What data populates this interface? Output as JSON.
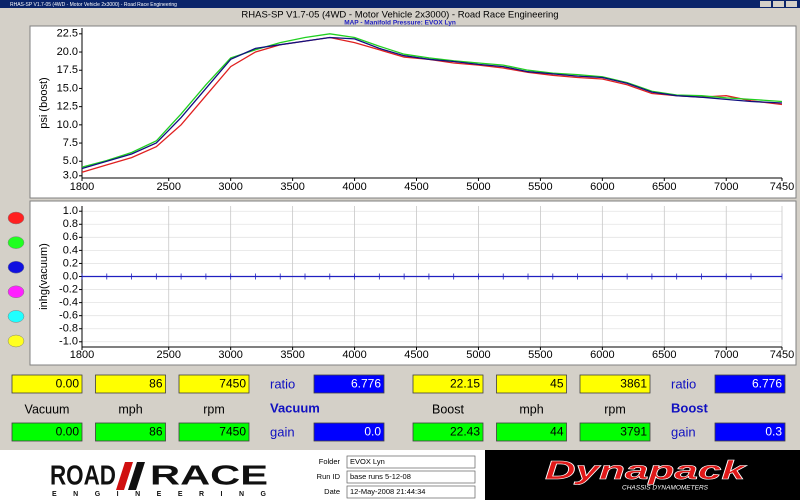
{
  "window_title": "RHAS-SP V1.7-05  (4WD - Motor Vehicle 2x3000) - Road Race Engineering",
  "chart_data": [
    {
      "type": "line",
      "title": "RHAS-SP V1.7-05  (4WD - Motor Vehicle 2x3000) - Road Race Engineering",
      "subtitle": "MAP - Manifold Pressure: EVOX Lyn",
      "ylabel": "psi (boost)",
      "x": [
        1800,
        2000,
        2200,
        2400,
        2600,
        2800,
        3000,
        3200,
        3400,
        3600,
        3800,
        4000,
        4200,
        4400,
        4600,
        4800,
        5000,
        5200,
        5400,
        5600,
        5800,
        6000,
        6200,
        6400,
        6600,
        6800,
        7000,
        7200,
        7450
      ],
      "series": [
        {
          "color": "#e02020",
          "values": [
            3.5,
            4.5,
            5.5,
            7.0,
            10.0,
            14.0,
            18.0,
            20.0,
            21.0,
            21.5,
            22.0,
            21.3,
            20.3,
            19.3,
            19.0,
            18.5,
            18.2,
            17.8,
            17.2,
            16.8,
            16.5,
            16.3,
            15.5,
            14.3,
            14.0,
            13.8,
            14.0,
            13.3,
            12.8
          ]
        },
        {
          "color": "#20d020",
          "values": [
            4.2,
            5.1,
            6.2,
            7.8,
            11.5,
            15.5,
            19.2,
            20.3,
            21.3,
            22.0,
            22.5,
            22.0,
            20.8,
            19.7,
            19.2,
            18.8,
            18.5,
            18.2,
            17.5,
            17.1,
            16.9,
            16.6,
            15.8,
            14.6,
            14.1,
            14.0,
            13.7,
            13.5,
            13.2
          ]
        },
        {
          "color": "#101080",
          "values": [
            4.0,
            5.0,
            6.0,
            7.5,
            11.0,
            15.0,
            19.0,
            20.5,
            21.0,
            21.5,
            22.0,
            21.8,
            20.5,
            19.5,
            19.0,
            18.7,
            18.3,
            18.0,
            17.3,
            17.0,
            16.7,
            16.5,
            15.7,
            14.5,
            14.0,
            13.8,
            13.5,
            13.2,
            13.0
          ]
        }
      ],
      "xlim": [
        1800,
        7450
      ],
      "ylim": [
        2.7,
        23.3
      ],
      "xticks": [
        1800,
        2500,
        3000,
        3500,
        4000,
        4500,
        5000,
        5500,
        6000,
        6500,
        7000,
        7450
      ],
      "yticks": [
        {
          "value": 3,
          "label": "3.0"
        },
        {
          "value": 5,
          "label": "5.0"
        },
        7.5,
        {
          "value": 10,
          "label": "10.0"
        },
        12.5,
        {
          "value": 15,
          "label": "15.0"
        },
        17.5,
        {
          "value": 20,
          "label": "20.0"
        },
        22.5
      ],
      "grid": false
    },
    {
      "type": "line",
      "ylabel": "inhg(vacuum)",
      "x": [
        1800,
        2000,
        2200,
        2400,
        2600,
        2800,
        3000,
        3200,
        3400,
        3600,
        3800,
        4000,
        4200,
        4400,
        4600,
        4800,
        5000,
        5200,
        5400,
        5600,
        5800,
        6000,
        6200,
        6400,
        6600,
        6800,
        7000,
        7200,
        7450
      ],
      "series": [
        {
          "color": "#2020c0",
          "values": [
            0,
            0,
            0,
            0,
            0,
            0,
            0,
            0,
            0,
            0,
            0,
            0,
            0,
            0,
            0,
            0,
            0,
            0,
            0,
            0,
            0,
            0,
            0,
            0,
            0,
            0,
            0,
            0,
            0
          ]
        }
      ],
      "xlim": [
        1800,
        7450
      ],
      "ylim": [
        -1.08,
        1.08
      ],
      "xticks": [
        1800,
        2500,
        3000,
        3500,
        4000,
        4500,
        5000,
        5500,
        6000,
        6500,
        7000,
        7450
      ],
      "yticks": [
        {
          "value": -1,
          "label": "-1.0"
        },
        -0.8,
        -0.6,
        -0.4,
        -0.2,
        {
          "value": 0,
          "label": "0.0"
        },
        0.2,
        0.4,
        0.6,
        0.8,
        {
          "value": 1,
          "label": "1.0"
        }
      ],
      "grid": true
    }
  ],
  "legend_colors": [
    "#ff2020",
    "#20ff20",
    "#1010e0",
    "#ff20ff",
    "#20ffff",
    "#ffff20"
  ],
  "panels": [
    {
      "title": "Vacuum",
      "fields": [
        {
          "label": "Vacuum",
          "top": "0.00",
          "bottom": "0.00"
        },
        {
          "label": "mph",
          "top": "86",
          "bottom": "86"
        },
        {
          "label": "rpm",
          "top": "7450",
          "bottom": "7450"
        }
      ],
      "ratio_label": "ratio",
      "ratio": "6.776",
      "gain_label": "gain",
      "gain": "0.0"
    },
    {
      "title": "Boost",
      "fields": [
        {
          "label": "Boost",
          "top": "22.15",
          "bottom": "22.43"
        },
        {
          "label": "mph",
          "top": "45",
          "bottom": "44"
        },
        {
          "label": "rpm",
          "top": "3861",
          "bottom": "3791"
        }
      ],
      "ratio_label": "ratio",
      "ratio": "6.776",
      "gain_label": "gain",
      "gain": "0.3"
    }
  ],
  "logo": {
    "left": "ROAD",
    "right": "RACE",
    "sub": "ENGINEERING"
  },
  "run_info": [
    {
      "label": "Folder",
      "value": "EVOX Lyn"
    },
    {
      "label": "Run ID",
      "value": "base runs 5-12-08"
    },
    {
      "label": "Date",
      "value": "12-May-2008  21:44:34"
    }
  ],
  "brand": {
    "name": "Dynapack",
    "sub": "CHASSIS DYNAMOMETERS"
  }
}
